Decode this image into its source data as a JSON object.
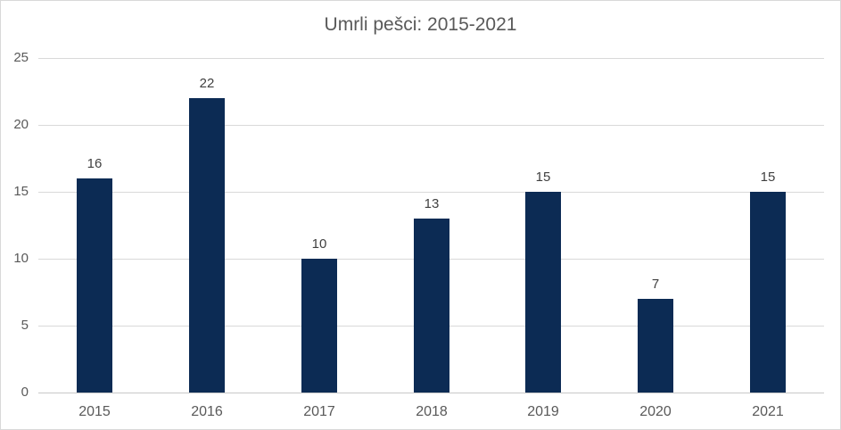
{
  "chart_data": {
    "type": "bar",
    "title": "Umrli pešci: 2015-2021",
    "categories": [
      "2015",
      "2016",
      "2017",
      "2018",
      "2019",
      "2020",
      "2021"
    ],
    "values": [
      16,
      22,
      10,
      13,
      15,
      7,
      15
    ],
    "data_labels": [
      "16",
      "22",
      "10",
      "13",
      "15",
      "7",
      "15"
    ],
    "xlabel": "",
    "ylabel": "",
    "ylim": [
      0,
      25
    ],
    "ytick_step": 5,
    "yticks": [
      "0",
      "5",
      "10",
      "15",
      "20",
      "25"
    ],
    "grid": "horizontal",
    "legend": "none",
    "colors": {
      "bar_fill": "#0c2b54",
      "gridline": "#d9d9d9",
      "axis_line": "#c9c9c9",
      "title_text": "#595959",
      "tick_text": "#595959",
      "data_label_text": "#404040",
      "background": "#ffffff",
      "border": "#d9d9d9"
    }
  }
}
